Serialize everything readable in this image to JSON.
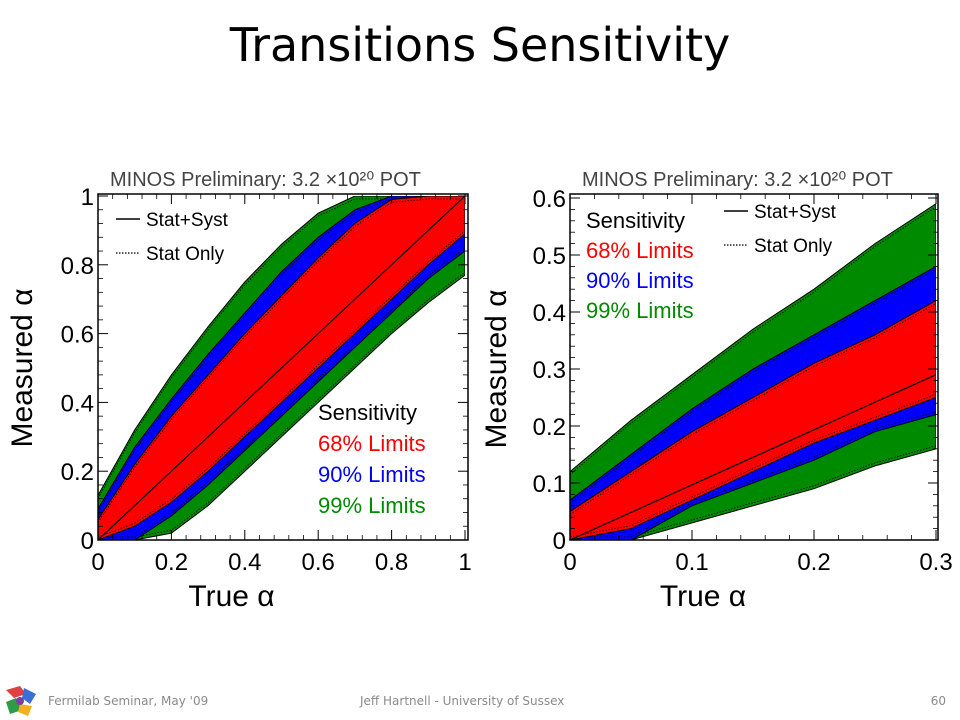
{
  "slide": {
    "title": "Transitions Sensitivity",
    "footer_left": "Fermilab Seminar, May '09",
    "footer_center": "Jeff Hartnell - University of Sussex",
    "page_number": "60",
    "logo_icon": "fermilab-logo-icon"
  },
  "chart_data": [
    {
      "type": "area",
      "header": "MINOS Preliminary: 3.2 ×10²⁰ POT",
      "xlabel": "True α",
      "ylabel": "Measured α",
      "xlim": [
        0,
        1
      ],
      "ylim": [
        0,
        1
      ],
      "xticks": [
        "0",
        "0.2",
        "0.4",
        "0.6",
        "0.8",
        "1"
      ],
      "yticks": [
        "0",
        "0.2",
        "0.4",
        "0.6",
        "0.8",
        "1"
      ],
      "xtick_values": [
        0,
        0.2,
        0.4,
        0.6,
        0.8,
        1
      ],
      "ytick_values": [
        0,
        0.2,
        0.4,
        0.6,
        0.8,
        1
      ],
      "line_legend": {
        "placement": "top-left",
        "entries": [
          "Stat+Syst",
          "Stat Only"
        ]
      },
      "band_legend": {
        "placement": "bottom-right",
        "title": "Sensitivity",
        "entries": [
          "68% Limits",
          "90% Limits",
          "99% Limits"
        ]
      },
      "colors": {
        "68": "#ff0000",
        "90": "#0000ff",
        "99": "#008a00"
      },
      "x": [
        0,
        0.1,
        0.2,
        0.3,
        0.4,
        0.5,
        0.6,
        0.7,
        0.8,
        0.9,
        1.0
      ],
      "series": [
        {
          "name": "99% Limits",
          "lower": [
            0,
            0,
            0.02,
            0.1,
            0.2,
            0.3,
            0.4,
            0.5,
            0.6,
            0.69,
            0.77
          ],
          "upper": [
            0.13,
            0.32,
            0.48,
            0.62,
            0.75,
            0.86,
            0.95,
            1.0,
            1.0,
            1.0,
            1.0
          ]
        },
        {
          "name": "90% Limits",
          "lower": [
            0,
            0,
            0.07,
            0.16,
            0.26,
            0.36,
            0.46,
            0.56,
            0.66,
            0.76,
            0.84
          ],
          "upper": [
            0.09,
            0.27,
            0.41,
            0.54,
            0.66,
            0.78,
            0.88,
            0.96,
            1.0,
            1.0,
            1.0
          ]
        },
        {
          "name": "68% Limits",
          "lower": [
            0,
            0.04,
            0.11,
            0.2,
            0.3,
            0.4,
            0.5,
            0.6,
            0.7,
            0.8,
            0.89
          ],
          "upper": [
            0.06,
            0.22,
            0.36,
            0.48,
            0.6,
            0.71,
            0.82,
            0.92,
            0.99,
            1.0,
            1.0
          ]
        }
      ],
      "central_line": {
        "x": [
          0,
          1.0
        ],
        "y": [
          0,
          1.0
        ]
      }
    },
    {
      "type": "area",
      "header": "MINOS Preliminary: 3.2 ×10²⁰ POT",
      "xlabel": "True α",
      "ylabel": "Measured α",
      "xlim": [
        0,
        0.3
      ],
      "ylim": [
        0,
        0.6
      ],
      "xticks": [
        "0",
        "0.1",
        "0.2",
        "0.3"
      ],
      "yticks": [
        "0",
        "0.1",
        "0.2",
        "0.3",
        "0.4",
        "0.5",
        "0.6"
      ],
      "xtick_values": [
        0,
        0.1,
        0.2,
        0.3
      ],
      "ytick_values": [
        0,
        0.1,
        0.2,
        0.3,
        0.4,
        0.5,
        0.6
      ],
      "line_legend": {
        "placement": "top-right",
        "entries": [
          "Stat+Syst",
          "Stat Only"
        ]
      },
      "band_legend": {
        "placement": "top-left",
        "title": "Sensitivity",
        "entries": [
          "68% Limits",
          "90% Limits",
          "99% Limits"
        ]
      },
      "colors": {
        "68": "#ff0000",
        "90": "#0000ff",
        "99": "#008a00"
      },
      "x": [
        0,
        0.05,
        0.1,
        0.15,
        0.2,
        0.25,
        0.3
      ],
      "series": [
        {
          "name": "99% Limits",
          "lower": [
            0,
            0,
            0.03,
            0.06,
            0.09,
            0.13,
            0.16
          ],
          "upper": [
            0.12,
            0.21,
            0.29,
            0.37,
            0.44,
            0.52,
            0.59
          ]
        },
        {
          "name": "90% Limits",
          "lower": [
            0,
            0.0,
            0.06,
            0.1,
            0.14,
            0.19,
            0.22
          ],
          "upper": [
            0.07,
            0.15,
            0.23,
            0.3,
            0.36,
            0.42,
            0.48
          ]
        },
        {
          "name": "68% Limits",
          "lower": [
            0,
            0.02,
            0.07,
            0.12,
            0.17,
            0.21,
            0.25
          ],
          "upper": [
            0.05,
            0.12,
            0.19,
            0.25,
            0.31,
            0.36,
            0.42
          ]
        }
      ],
      "central_line": {
        "x": [
          0,
          0.3
        ],
        "y": [
          0.0,
          0.29
        ]
      }
    }
  ]
}
